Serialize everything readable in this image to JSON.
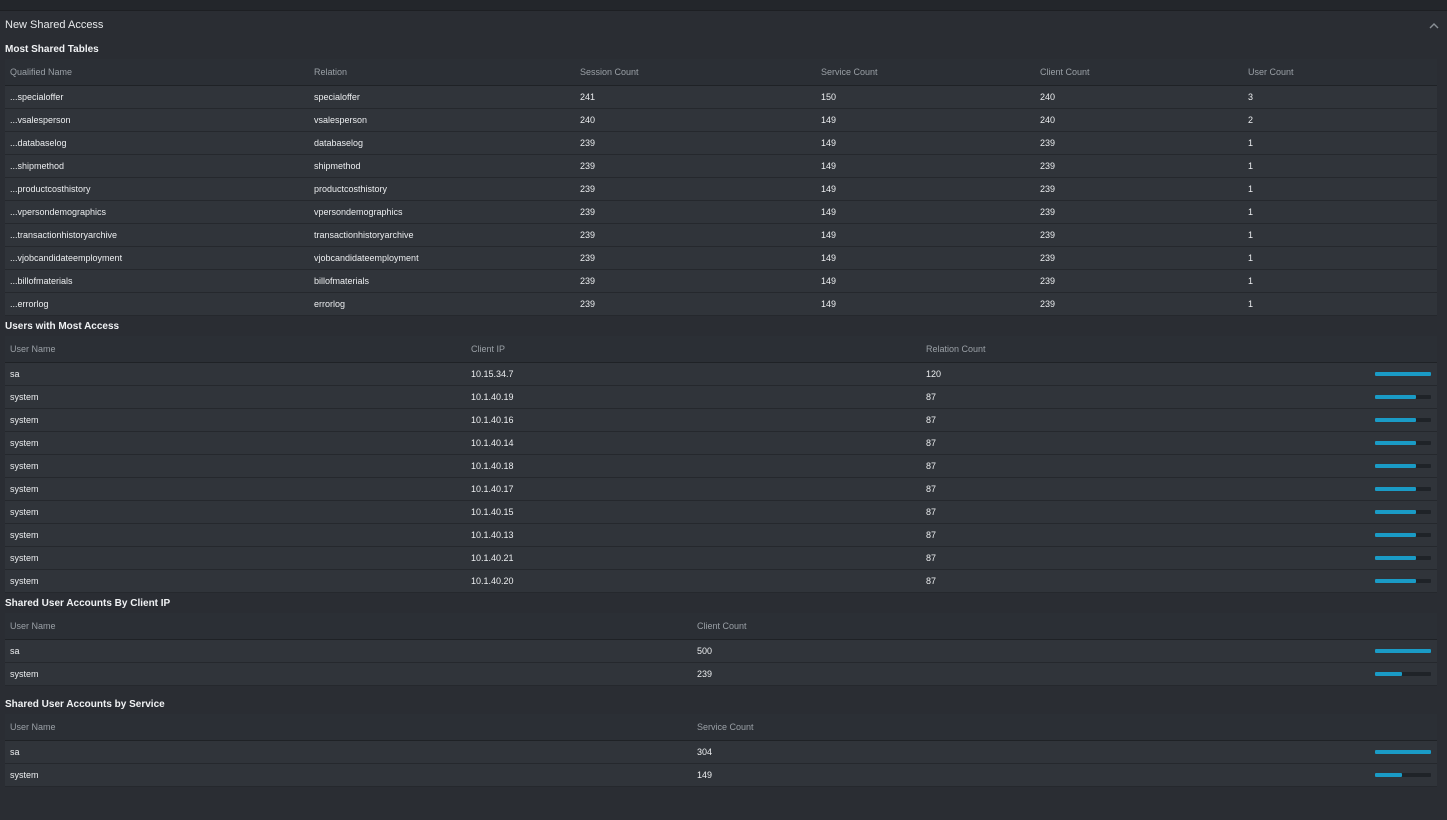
{
  "panel": {
    "title": "New Shared Access"
  },
  "colors": {
    "accent": "#1a9bc6"
  },
  "icons": {
    "collapse": "chevron-up-icon"
  },
  "most_shared_tables": {
    "title": "Most Shared Tables",
    "columns": [
      "Qualified Name",
      "Relation",
      "Session Count",
      "Service Count",
      "Client Count",
      "User Count"
    ],
    "rows": [
      [
        "...specialoffer",
        "specialoffer",
        "241",
        "150",
        "240",
        "3"
      ],
      [
        "...vsalesperson",
        "vsalesperson",
        "240",
        "149",
        "240",
        "2"
      ],
      [
        "...databaselog",
        "databaselog",
        "239",
        "149",
        "239",
        "1"
      ],
      [
        "...shipmethod",
        "shipmethod",
        "239",
        "149",
        "239",
        "1"
      ],
      [
        "...productcosthistory",
        "productcosthistory",
        "239",
        "149",
        "239",
        "1"
      ],
      [
        "...vpersondemographics",
        "vpersondemographics",
        "239",
        "149",
        "239",
        "1"
      ],
      [
        "...transactionhistoryarchive",
        "transactionhistoryarchive",
        "239",
        "149",
        "239",
        "1"
      ],
      [
        "...vjobcandidateemployment",
        "vjobcandidateemployment",
        "239",
        "149",
        "239",
        "1"
      ],
      [
        "...billofmaterials",
        "billofmaterials",
        "239",
        "149",
        "239",
        "1"
      ],
      [
        "...errorlog",
        "errorlog",
        "239",
        "149",
        "239",
        "1"
      ]
    ]
  },
  "users_most_access": {
    "title": "Users with Most Access",
    "columns": [
      "User Name",
      "Client IP",
      "Relation Count"
    ],
    "max": 120,
    "rows": [
      {
        "user": "sa",
        "ip": "10.15.34.7",
        "count": "120",
        "value": 120
      },
      {
        "user": "system",
        "ip": "10.1.40.19",
        "count": "87",
        "value": 87
      },
      {
        "user": "system",
        "ip": "10.1.40.16",
        "count": "87",
        "value": 87
      },
      {
        "user": "system",
        "ip": "10.1.40.14",
        "count": "87",
        "value": 87
      },
      {
        "user": "system",
        "ip": "10.1.40.18",
        "count": "87",
        "value": 87
      },
      {
        "user": "system",
        "ip": "10.1.40.17",
        "count": "87",
        "value": 87
      },
      {
        "user": "system",
        "ip": "10.1.40.15",
        "count": "87",
        "value": 87
      },
      {
        "user": "system",
        "ip": "10.1.40.13",
        "count": "87",
        "value": 87
      },
      {
        "user": "system",
        "ip": "10.1.40.21",
        "count": "87",
        "value": 87
      },
      {
        "user": "system",
        "ip": "10.1.40.20",
        "count": "87",
        "value": 87
      }
    ]
  },
  "shared_by_client_ip": {
    "title": "Shared User Accounts By Client IP",
    "columns": [
      "User Name",
      "Client Count"
    ],
    "max": 500,
    "rows": [
      {
        "user": "sa",
        "count": "500",
        "value": 500
      },
      {
        "user": "system",
        "count": "239",
        "value": 239
      }
    ]
  },
  "shared_by_service": {
    "title": "Shared User Accounts by Service",
    "columns": [
      "User Name",
      "Service Count"
    ],
    "max": 304,
    "rows": [
      {
        "user": "sa",
        "count": "304",
        "value": 304
      },
      {
        "user": "system",
        "count": "149",
        "value": 149
      }
    ]
  }
}
